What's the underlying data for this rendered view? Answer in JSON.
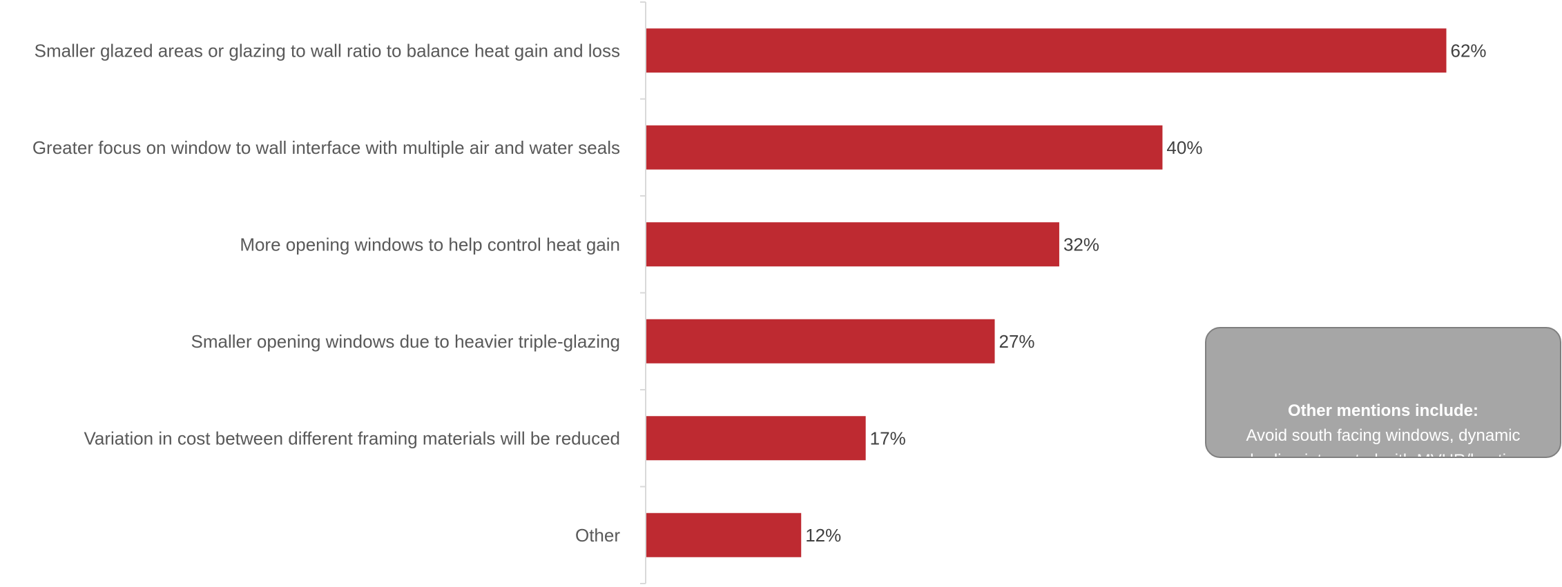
{
  "chart_data": {
    "type": "bar",
    "orientation": "horizontal",
    "categories": [
      "Smaller glazed areas or glazing to wall ratio to balance heat gain and loss",
      "Greater focus on window to wall interface with multiple air and water seals",
      "More opening windows to help control heat gain",
      "Smaller opening windows due to heavier triple-glazing",
      "Variation in cost between different framing materials will be reduced",
      "Other"
    ],
    "values": [
      62,
      40,
      32,
      27,
      17,
      12
    ],
    "value_labels": [
      "62%",
      "40%",
      "32%",
      "27%",
      "17%",
      "12%"
    ],
    "xlim": [
      0,
      70
    ],
    "grid": false,
    "legend": "none",
    "bar_color": "#be2a31",
    "axis_color": "#d9d9d9"
  },
  "callout": {
    "title": "Other mentions include:",
    "body": "Avoid south facing windows, dynamic shading integrated with MVHR/heating"
  }
}
